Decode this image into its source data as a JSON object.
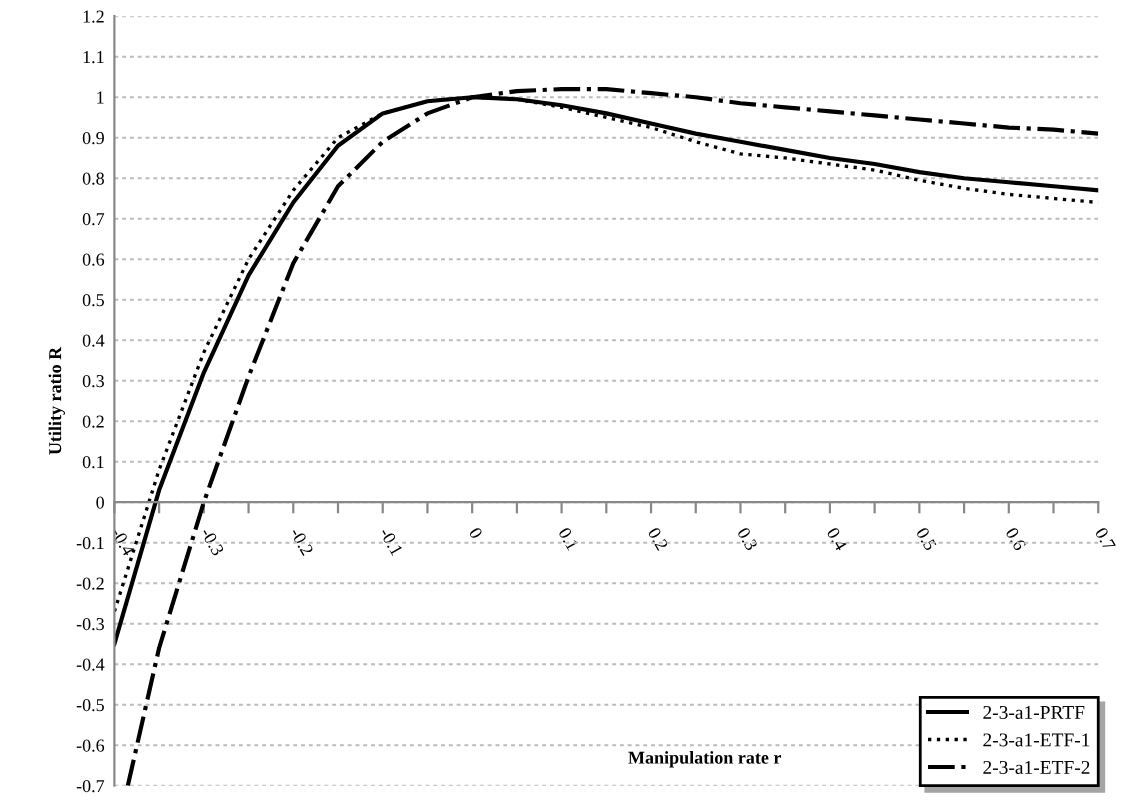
{
  "chart_data": {
    "type": "line",
    "xlabel": "Manipulation rate r",
    "ylabel": "Utility ratio R",
    "x": [
      -0.4,
      -0.35,
      -0.3,
      -0.25,
      -0.2,
      -0.15,
      -0.1,
      -0.05,
      0,
      0.05,
      0.1,
      0.15,
      0.2,
      0.25,
      0.3,
      0.35,
      0.4,
      0.45,
      0.5,
      0.55,
      0.6,
      0.65,
      0.7
    ],
    "series": [
      {
        "name": "2-3-a1-PRTF",
        "color": "#000000",
        "line_style": "solid",
        "values": [
          -0.35,
          0.03,
          0.32,
          0.56,
          0.74,
          0.88,
          0.96,
          0.99,
          1.0,
          0.995,
          0.98,
          0.96,
          0.935,
          0.91,
          0.89,
          0.87,
          0.85,
          0.835,
          0.815,
          0.8,
          0.79,
          0.78,
          0.77
        ]
      },
      {
        "name": "2-3-a1-ETF-1",
        "color": "#000000",
        "line_style": "dotted",
        "values": [
          -0.27,
          0.08,
          0.37,
          0.6,
          0.77,
          0.9,
          0.96,
          0.99,
          1.0,
          0.995,
          0.975,
          0.95,
          0.925,
          0.89,
          0.86,
          0.85,
          0.835,
          0.82,
          0.795,
          0.775,
          0.76,
          0.75,
          0.74
        ]
      },
      {
        "name": "2-3-a1-ETF-2",
        "color": "#000000",
        "line_style": "dashdot",
        "x": [
          -0.385,
          -0.35,
          -0.3,
          -0.25,
          -0.2,
          -0.15,
          -0.1,
          -0.05,
          0,
          0.05,
          0.1,
          0.15,
          0.2,
          0.25,
          0.3,
          0.35,
          0.4,
          0.45,
          0.5,
          0.55,
          0.6,
          0.65,
          0.7
        ],
        "values": [
          -0.7,
          -0.36,
          0.0,
          0.31,
          0.59,
          0.78,
          0.89,
          0.96,
          1.0,
          1.015,
          1.02,
          1.02,
          1.01,
          1.0,
          0.985,
          0.975,
          0.965,
          0.955,
          0.945,
          0.935,
          0.925,
          0.92,
          0.91
        ]
      }
    ],
    "xlim": [
      -0.4,
      0.7
    ],
    "xticks": [
      -0.4,
      {
        "value": -0.35,
        "label": null
      },
      -0.3,
      {
        "value": -0.25,
        "label": null
      },
      -0.2,
      {
        "value": -0.15,
        "label": null
      },
      -0.1,
      {
        "value": -0.05,
        "label": null
      },
      0,
      {
        "value": 0.05,
        "label": null
      },
      0.1,
      {
        "value": 0.15,
        "label": null
      },
      0.2,
      {
        "value": 0.25,
        "label": null
      },
      0.3,
      {
        "value": 0.35,
        "label": null
      },
      0.4,
      {
        "value": 0.45,
        "label": null
      },
      0.5,
      {
        "value": 0.55,
        "label": null
      },
      0.6,
      {
        "value": 0.65,
        "label": null
      },
      0.7
    ],
    "ylim": [
      -0.7,
      1.2
    ],
    "yticks": [
      -0.7,
      -0.6,
      -0.5,
      -0.4,
      -0.3,
      -0.2,
      -0.1,
      0,
      0.1,
      0.2,
      0.3,
      0.4,
      0.5,
      0.6,
      0.7,
      0.8,
      0.9,
      1,
      1.1,
      1.2
    ],
    "grid": "y",
    "legend": "bottom right",
    "marker": "none"
  }
}
